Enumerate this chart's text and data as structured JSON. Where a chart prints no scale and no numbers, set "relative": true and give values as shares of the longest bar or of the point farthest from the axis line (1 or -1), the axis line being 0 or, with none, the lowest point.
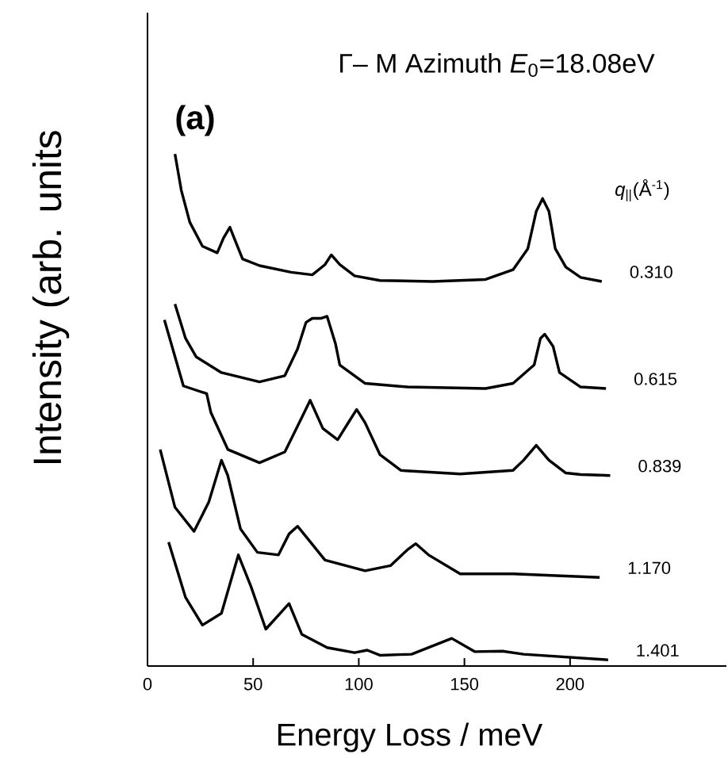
{
  "chart_data": {
    "type": "line",
    "relative": true,
    "title": "Γ– M Azimuth *E*$_{0}$=18.08eV",
    "xlabel": "Energy Loss / meV",
    "ylabel": "Intensity (arb. units",
    "legend_title": "*q*$_{||}$(Å$^{-1}$)",
    "annotations": [
      "**(a)**"
    ],
    "xlim": [
      0,
      274
    ],
    "xticks": [
      0,
      50,
      100,
      150,
      200
    ],
    "marker": "none",
    "line_style": "solid",
    "series": [
      {
        "name": "0.310",
        "color": "#000000",
        "x": [
          13,
          16,
          20,
          26,
          33,
          36,
          39,
          41,
          45,
          53,
          68,
          78,
          84,
          87,
          91,
          98,
          110,
          135,
          160,
          173,
          180,
          184,
          187,
          190,
          193,
          198,
          205,
          215
        ],
        "values": [
          1.0,
          0.929,
          0.867,
          0.82,
          0.807,
          0.836,
          0.857,
          0.836,
          0.795,
          0.782,
          0.769,
          0.764,
          0.784,
          0.803,
          0.784,
          0.762,
          0.753,
          0.751,
          0.755,
          0.774,
          0.815,
          0.888,
          0.913,
          0.888,
          0.815,
          0.779,
          0.759,
          0.751
        ]
      },
      {
        "name": "0.615",
        "color": "#000000",
        "x": [
          13,
          18,
          23,
          35,
          53,
          65,
          71,
          75,
          78,
          82,
          85,
          89,
          91,
          103,
          123,
          160,
          173,
          183,
          186,
          188,
          192,
          195,
          205,
          217
        ],
        "values": [
          0.707,
          0.64,
          0.604,
          0.573,
          0.555,
          0.567,
          0.619,
          0.671,
          0.679,
          0.679,
          0.683,
          0.629,
          0.588,
          0.552,
          0.545,
          0.542,
          0.552,
          0.588,
          0.64,
          0.648,
          0.624,
          0.573,
          0.545,
          0.542
        ]
      },
      {
        "name": "0.839",
        "color": "#000000",
        "x": [
          8,
          17,
          28,
          30,
          38,
          53,
          65,
          73,
          77,
          83,
          90,
          95,
          99,
          103,
          110,
          120,
          148,
          173,
          178,
          184,
          190,
          198,
          205,
          219
        ],
        "values": [
          0.676,
          0.547,
          0.532,
          0.495,
          0.423,
          0.397,
          0.418,
          0.485,
          0.519,
          0.464,
          0.442,
          0.475,
          0.501,
          0.475,
          0.413,
          0.382,
          0.375,
          0.382,
          0.402,
          0.431,
          0.402,
          0.377,
          0.374,
          0.372
        ]
      },
      {
        "name": "1.170",
        "color": "#000000",
        "x": [
          6,
          13,
          22,
          29,
          35,
          38,
          44,
          52,
          62,
          67,
          71,
          75,
          84,
          103,
          115,
          123,
          127,
          133,
          148,
          173,
          214
        ],
        "values": [
          0.423,
          0.31,
          0.263,
          0.32,
          0.402,
          0.372,
          0.268,
          0.222,
          0.217,
          0.258,
          0.273,
          0.253,
          0.207,
          0.186,
          0.196,
          0.227,
          0.239,
          0.217,
          0.18,
          0.18,
          0.173
        ]
      },
      {
        "name": "1.401",
        "color": "#000000",
        "x": [
          10,
          18,
          26,
          35,
          43,
          49,
          56,
          67,
          73,
          85,
          98,
          104,
          110,
          125,
          144,
          155,
          168,
          178,
          218
        ],
        "values": [
          0.242,
          0.134,
          0.08,
          0.103,
          0.217,
          0.155,
          0.072,
          0.122,
          0.062,
          0.036,
          0.026,
          0.031,
          0.021,
          0.023,
          0.054,
          0.028,
          0.029,
          0.023,
          0.012
        ]
      }
    ]
  }
}
